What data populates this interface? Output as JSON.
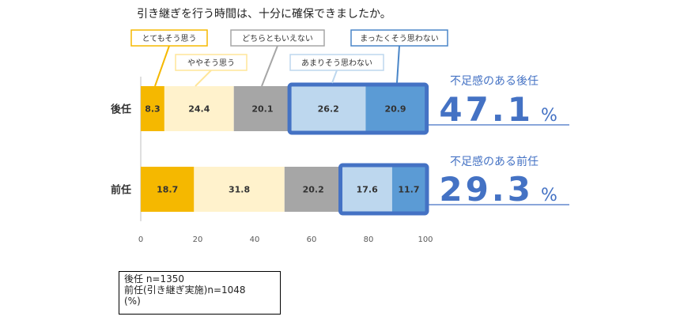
{
  "chart_data": {
    "type": "bar",
    "orientation": "horizontal",
    "stacked": true,
    "title": "引き継ぎを行う時間は、十分に確保できましたか。",
    "categories": [
      "後任",
      "前任"
    ],
    "series": [
      {
        "name": "とてもそう思う",
        "values": [
          8.3,
          18.7
        ],
        "color": "#F5B800"
      },
      {
        "name": "ややそう思う",
        "values": [
          24.4,
          31.8
        ],
        "color": "#FFF2CC"
      },
      {
        "name": "どちらともいえない",
        "values": [
          20.1,
          20.2
        ],
        "color": "#A6A6A6"
      },
      {
        "name": "あまりそう思わない",
        "values": [
          26.2,
          17.6
        ],
        "color": "#BDD7EE"
      },
      {
        "name": "まったくそう思わない",
        "values": [
          20.9,
          11.7
        ],
        "color": "#5B9BD5"
      }
    ],
    "xlim": [
      0,
      100
    ],
    "xticks": [
      "0",
      "20",
      "40",
      "60",
      "80",
      "100"
    ],
    "grid": false,
    "highlight_color": "#4472C4",
    "callouts": [
      {
        "label": "不足感のある後任",
        "value": "47.1",
        "unit": "%"
      },
      {
        "label": "不足感のある前任",
        "value": "29.3",
        "unit": "%"
      }
    ],
    "notes": [
      "後任 n=1350",
      "前任(引き継ぎ実施)n=1048",
      "(%)"
    ]
  }
}
